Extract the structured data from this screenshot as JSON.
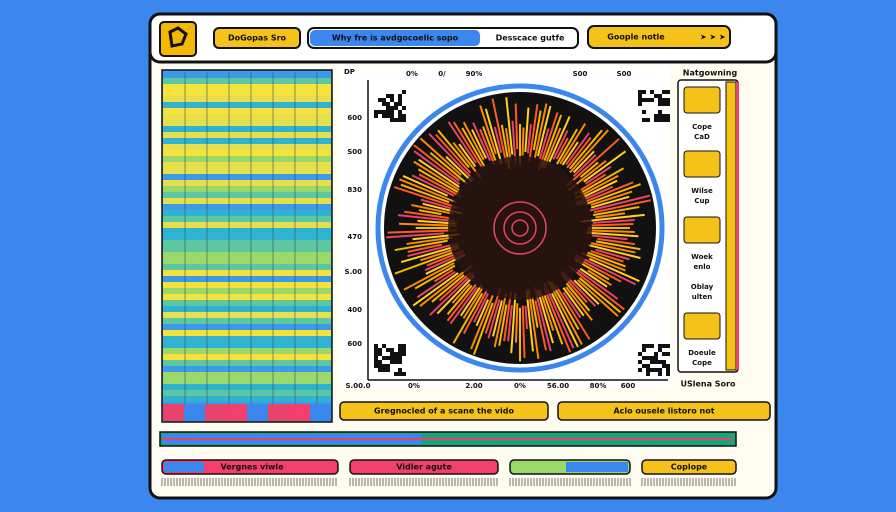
{
  "header": {
    "app_button": "DoGopas Sro",
    "search": "Why fre is avdgocoelic sopo",
    "search_hint": "Desscace gutfe",
    "action": "Goople notle"
  },
  "chart": {
    "unit_label": "DP",
    "top_ticks": [
      "0%",
      "0/",
      "90%",
      "S00",
      "S00"
    ],
    "left_ticks": [
      "600",
      "S00",
      "830",
      "470",
      "S.00",
      "400",
      "600"
    ],
    "bottom_ticks": [
      "S.00.0",
      "0%",
      "2.00",
      "0%",
      "56.00",
      "80%",
      "600"
    ]
  },
  "sidebar": {
    "title": "Natgowning",
    "items": [
      [
        "Cope",
        "CaD"
      ],
      [
        "Wilse",
        "Cup"
      ],
      [
        "Woek",
        "enlo"
      ],
      [
        "Oblay",
        "ulten"
      ],
      [
        "Doeule",
        "Cope"
      ]
    ],
    "footer": "USlena Soro"
  },
  "actions": [
    "Gregnocled of a scane the vido",
    "Aclo ousele listoro not"
  ],
  "bottom_bar": [
    "Vergnes viwle",
    "Vidler agute",
    "Coplope"
  ]
}
